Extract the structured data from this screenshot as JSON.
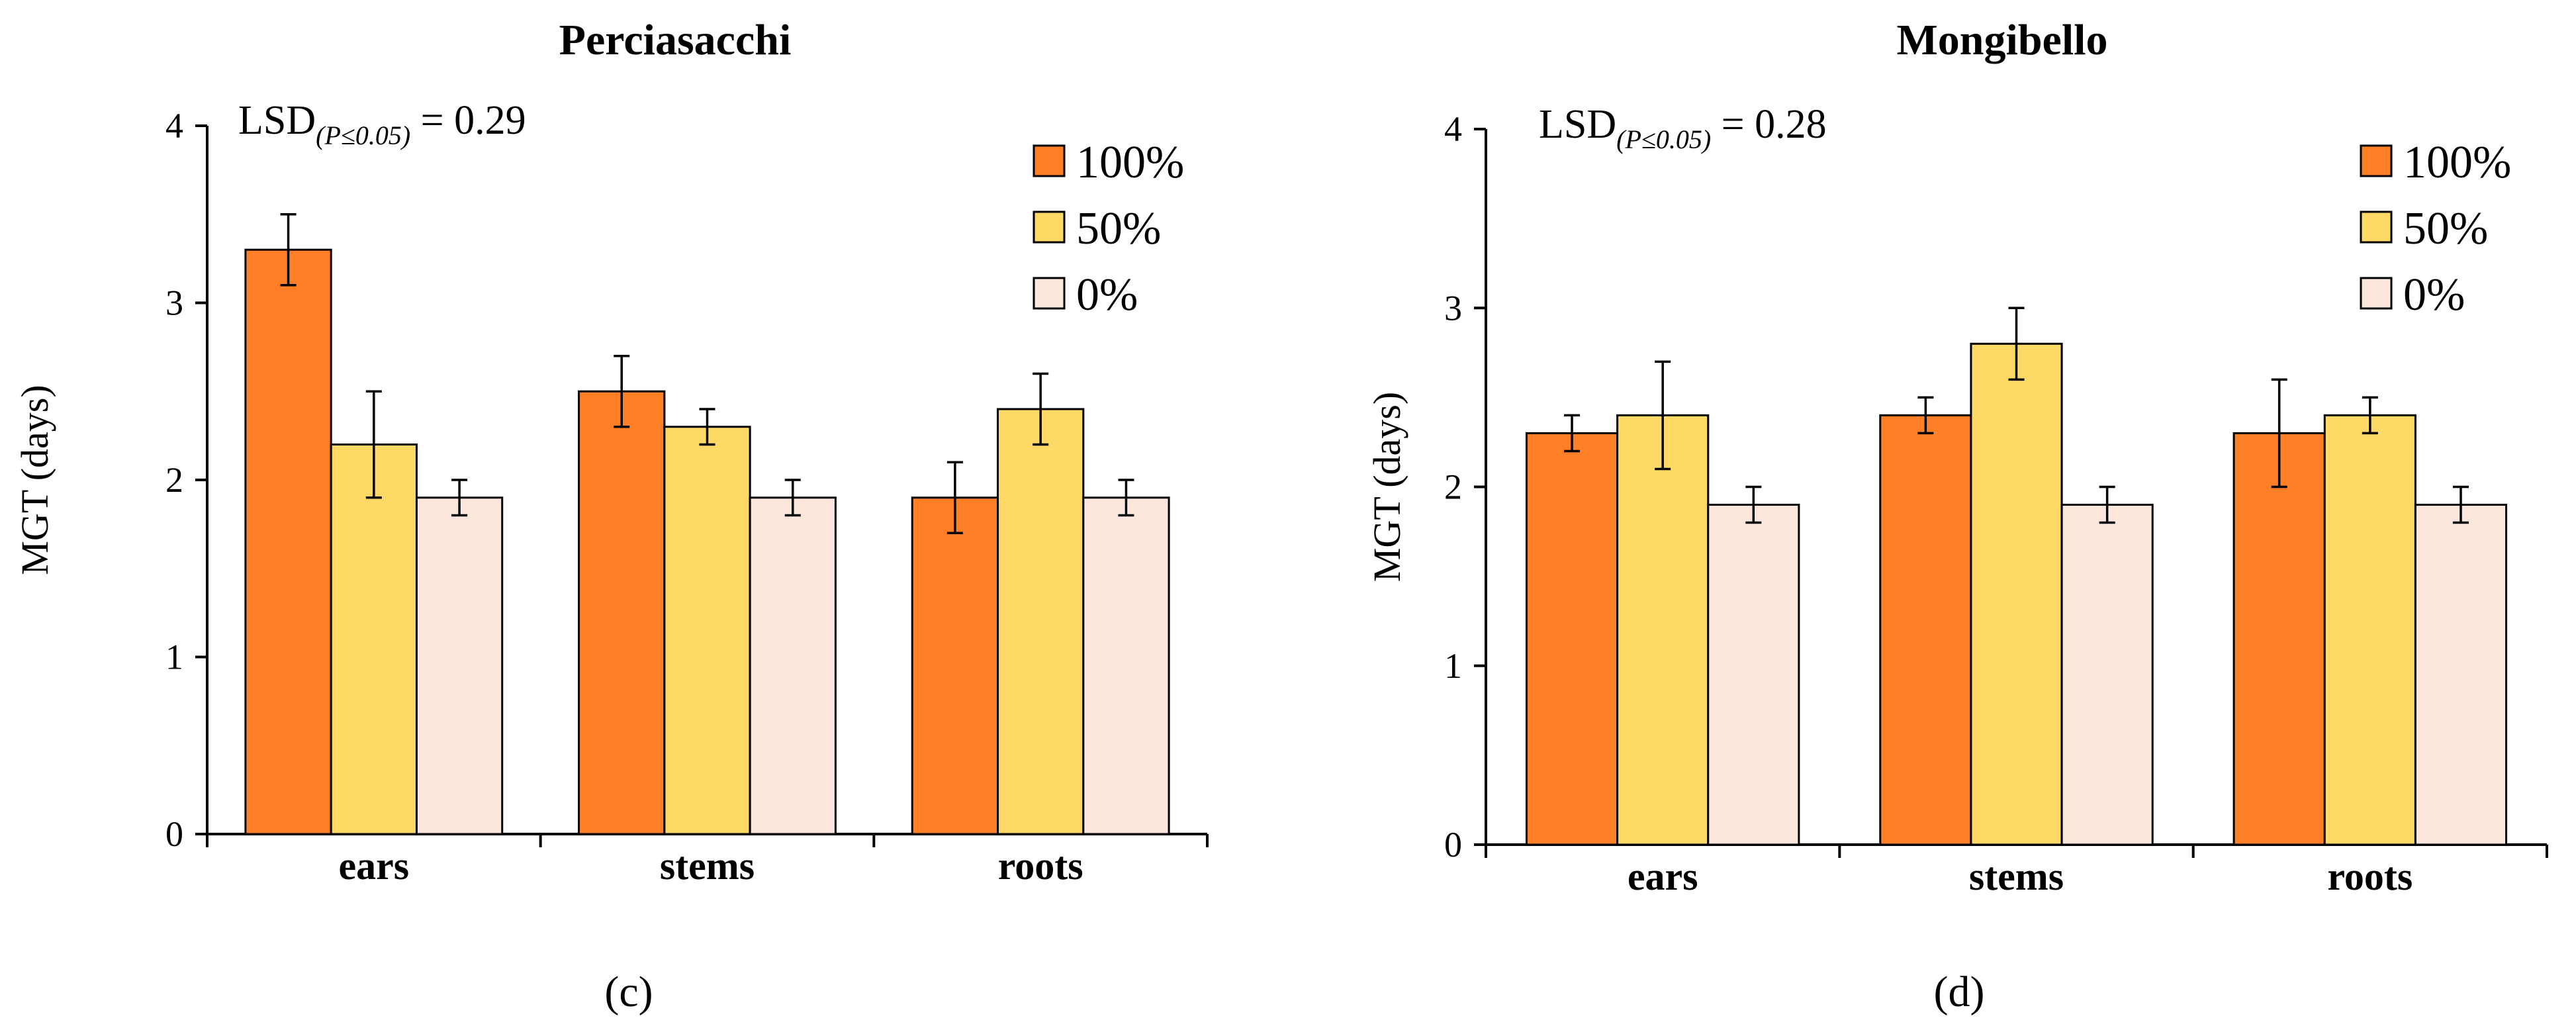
{
  "chart_data": [
    {
      "type": "bar",
      "title": "Perciasacchi",
      "panel_label": "(c)",
      "ylabel": "MGT (days)",
      "xlabel": "",
      "ylim": [
        0,
        4
      ],
      "yticks": [
        "0",
        "1",
        "2",
        "3",
        "4"
      ],
      "categories": [
        "ears",
        "stems",
        "roots"
      ],
      "lsd": {
        "prefix": "LSD",
        "subscript": "(P≤0.05)",
        "suffix": " = 0.29"
      },
      "legend_position": "top-right",
      "series": [
        {
          "name": "100%",
          "color": "#FF7F27",
          "values": [
            3.3,
            2.5,
            1.9
          ],
          "errors": [
            0.2,
            0.2,
            0.2
          ]
        },
        {
          "name": "50%",
          "color": "#FFD966",
          "values": [
            2.2,
            2.3,
            2.4
          ],
          "errors": [
            0.3,
            0.1,
            0.2
          ]
        },
        {
          "name": "0%",
          "color": "#FDE7DD",
          "values": [
            1.9,
            1.9,
            1.9
          ],
          "errors": [
            0.1,
            0.1,
            0.1
          ]
        }
      ]
    },
    {
      "type": "bar",
      "title": "Mongibello",
      "panel_label": "(d)",
      "ylabel": "MGT (days)",
      "xlabel": "",
      "ylim": [
        0,
        4
      ],
      "yticks": [
        "0",
        "1",
        "2",
        "3",
        "4"
      ],
      "categories": [
        "ears",
        "stems",
        "roots"
      ],
      "lsd": {
        "prefix": "LSD",
        "subscript": "(P≤0.05)",
        "suffix": " = 0.28"
      },
      "legend_position": "top-right",
      "series": [
        {
          "name": "100%",
          "color": "#FF7F27",
          "values": [
            2.3,
            2.4,
            2.3
          ],
          "errors": [
            0.1,
            0.1,
            0.3
          ]
        },
        {
          "name": "50%",
          "color": "#FFD966",
          "values": [
            2.4,
            2.8,
            2.4
          ],
          "errors": [
            0.3,
            0.2,
            0.1
          ]
        },
        {
          "name": "0%",
          "color": "#FDE7DD",
          "values": [
            1.9,
            1.9,
            1.9
          ],
          "errors": [
            0.1,
            0.1,
            0.1
          ]
        }
      ]
    }
  ]
}
